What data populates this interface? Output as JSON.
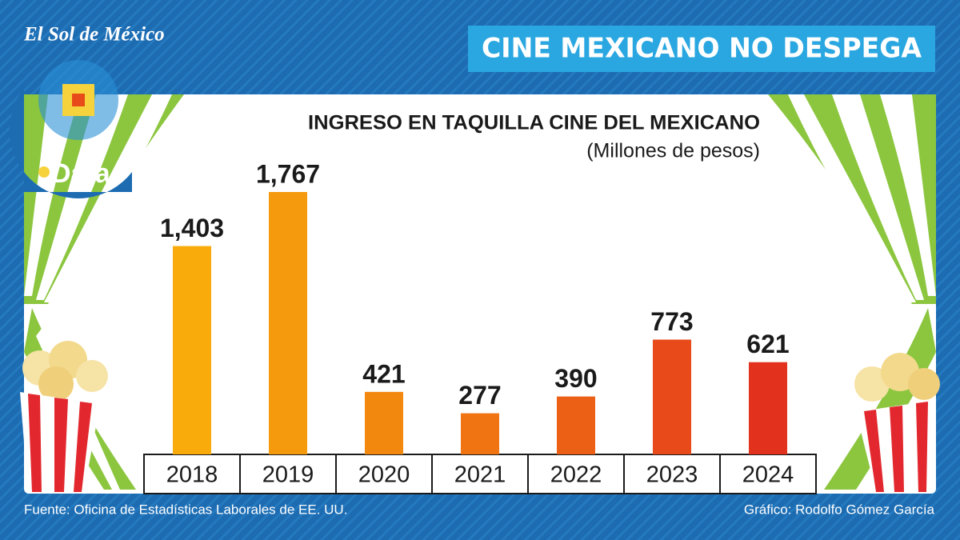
{
  "brand": "El Sol de México",
  "badge": "Data",
  "header": {
    "title": "CINE MEXICANO NO DESPEGA"
  },
  "chart_data": {
    "type": "bar",
    "title": "INGRESO EN TAQUILLA CINE DEL  MEXICANO",
    "subtitle": "(Millones de pesos)",
    "categories": [
      "2018",
      "2019",
      "2020",
      "2021",
      "2022",
      "2023",
      "2024"
    ],
    "values": [
      1403,
      1767,
      421,
      277,
      390,
      773,
      621
    ],
    "value_labels": [
      "1,403",
      "1,767",
      "421",
      "277",
      "390",
      "773",
      "621"
    ],
    "colors": [
      "#f8ab0a",
      "#f59a0c",
      "#f3880f",
      "#f07412",
      "#ec6016",
      "#e84a1a",
      "#e2321e"
    ]
  },
  "footer": {
    "source": "Fuente: Oficina de Estadísticas Laborales de EE. UU.",
    "credit": "Gráfico: Rodolfo Gómez García"
  }
}
